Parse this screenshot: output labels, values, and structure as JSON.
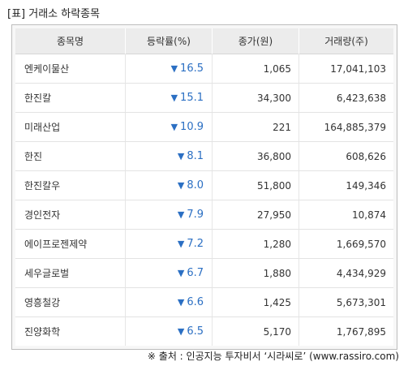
{
  "title": "[표] 거래소 하락종목",
  "headers": [
    "종목명",
    "등락률(%)",
    "종가(원)",
    "거래량(주)"
  ],
  "arrow_glyph": "▼",
  "rows": [
    {
      "name": "엔케이물산",
      "change": "16.5",
      "close": "1,065",
      "volume": "17,041,103"
    },
    {
      "name": "한진칼",
      "change": "15.1",
      "close": "34,300",
      "volume": "6,423,638"
    },
    {
      "name": "미래산업",
      "change": "10.9",
      "close": "221",
      "volume": "164,885,379"
    },
    {
      "name": "한진",
      "change": "8.1",
      "close": "36,800",
      "volume": "608,626"
    },
    {
      "name": "한진칼우",
      "change": "8.0",
      "close": "51,800",
      "volume": "149,346"
    },
    {
      "name": "경인전자",
      "change": "7.9",
      "close": "27,950",
      "volume": "10,874"
    },
    {
      "name": "에이프로젠제약",
      "change": "7.2",
      "close": "1,280",
      "volume": "1,669,570"
    },
    {
      "name": "세우글로벌",
      "change": "6.7",
      "close": "1,880",
      "volume": "4,434,929"
    },
    {
      "name": "영흥철강",
      "change": "6.6",
      "close": "1,425",
      "volume": "5,673,301"
    },
    {
      "name": "진양화학",
      "change": "6.5",
      "close": "5,170",
      "volume": "1,767,895"
    }
  ],
  "source": "※ 출처 : 인공지능 투자비서 ‘시라씨로’ (www.rassiro.com)",
  "colors": {
    "down": "#2b6fc3",
    "header_bg": "#ececec",
    "frame_bg": "#f7f7f7"
  }
}
